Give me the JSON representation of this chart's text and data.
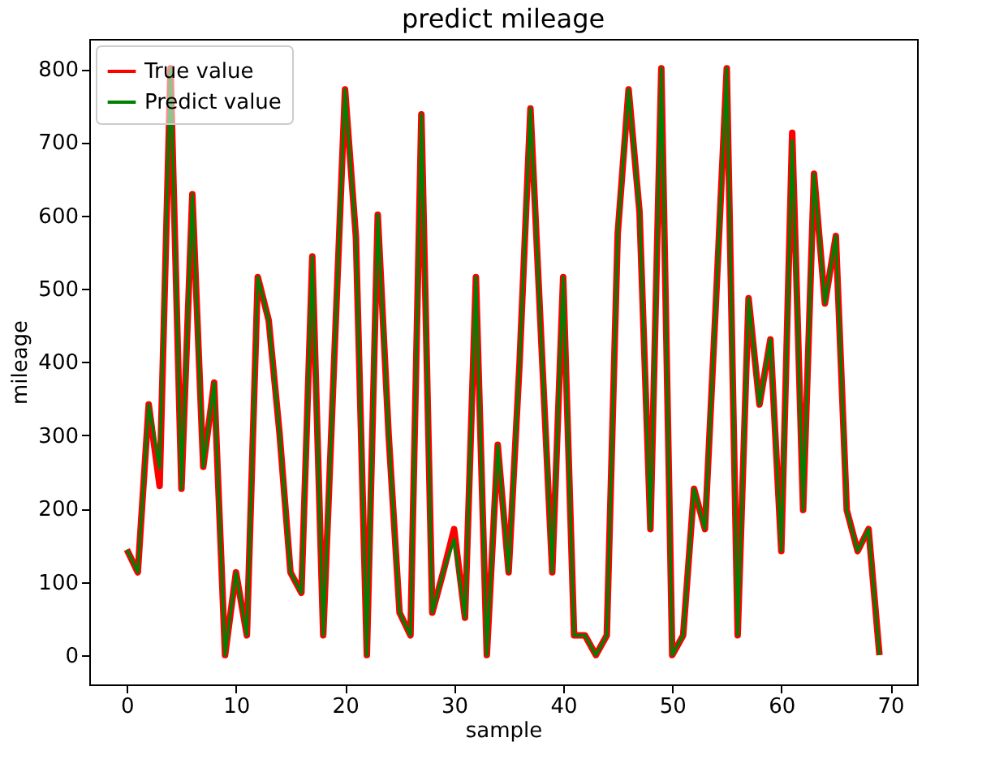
{
  "chart_data": {
    "type": "line",
    "title": "predict mileage",
    "xlabel": "sample",
    "ylabel": "mileage",
    "x": [
      0,
      1,
      2,
      3,
      4,
      5,
      6,
      7,
      8,
      9,
      10,
      11,
      12,
      13,
      14,
      15,
      16,
      17,
      18,
      19,
      20,
      21,
      22,
      23,
      24,
      25,
      26,
      27,
      28,
      29,
      30,
      31,
      32,
      33,
      34,
      35,
      36,
      37,
      38,
      39,
      40,
      41,
      42,
      43,
      44,
      45,
      46,
      47,
      48,
      49,
      50,
      51,
      52,
      53,
      54,
      55,
      56,
      57,
      58,
      59,
      60,
      61,
      62,
      63,
      64,
      65,
      66,
      67,
      68,
      69
    ],
    "series": [
      {
        "name": "True value",
        "color": "#ff0000",
        "values": [
          144,
          113,
          342,
          231,
          801,
          227,
          629,
          257,
          372,
          0,
          113,
          27,
          516,
          457,
          302,
          113,
          85,
          544,
          27,
          400,
          772,
          570,
          0,
          601,
          300,
          58,
          27,
          738,
          58,
          113,
          172,
          51,
          516,
          0,
          287,
          113,
          398,
          746,
          427,
          113,
          516,
          27,
          27,
          0,
          27,
          575,
          772,
          605,
          172,
          801,
          0,
          27,
          227,
          172,
          480,
          801,
          27,
          487,
          342,
          431,
          142,
          713,
          198,
          657,
          480,
          572,
          198,
          142,
          172,
          0
        ]
      },
      {
        "name": "Predict value",
        "color": "#008000",
        "values": [
          144,
          113,
          342,
          255,
          801,
          227,
          629,
          257,
          372,
          0,
          113,
          27,
          516,
          457,
          302,
          113,
          85,
          544,
          27,
          400,
          772,
          570,
          0,
          601,
          300,
          58,
          27,
          738,
          58,
          113,
          158,
          51,
          516,
          0,
          287,
          113,
          398,
          746,
          427,
          113,
          516,
          27,
          27,
          0,
          27,
          575,
          772,
          605,
          172,
          801,
          0,
          27,
          227,
          172,
          480,
          801,
          27,
          487,
          342,
          431,
          142,
          702,
          198,
          657,
          480,
          572,
          198,
          142,
          172,
          0
        ]
      }
    ],
    "xlim": [
      -3.45,
      72.45
    ],
    "ylim": [
      -40,
      841
    ],
    "xticks": [
      0,
      10,
      20,
      30,
      40,
      50,
      60,
      70
    ],
    "yticks": [
      0,
      100,
      200,
      300,
      400,
      500,
      600,
      700,
      800
    ],
    "legend": "top left",
    "grid": false
  }
}
